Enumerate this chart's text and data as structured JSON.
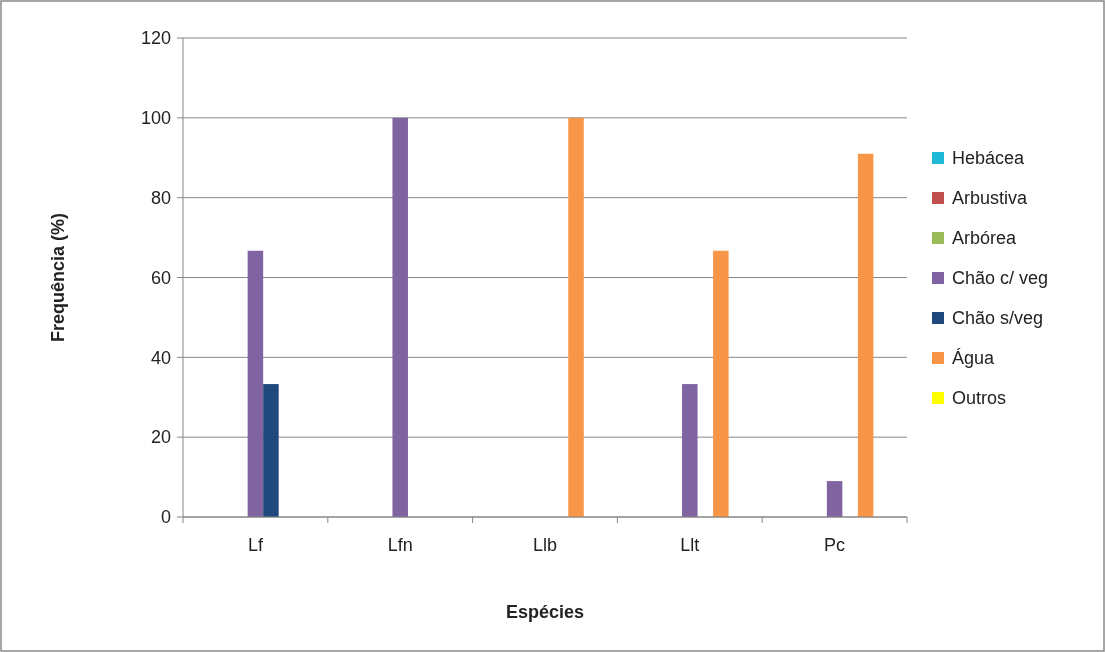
{
  "chart_data": {
    "type": "bar",
    "xlabel": "Espécies",
    "ylabel": "Frequência (%)",
    "categories": [
      "Lf",
      "Lfn",
      "Llb",
      "Llt",
      "Pc"
    ],
    "series": [
      {
        "name": "Hebácea",
        "color": "#1fb8d6",
        "values": [
          0,
          0,
          0,
          0,
          0
        ]
      },
      {
        "name": "Arbustiva",
        "color": "#c0504d",
        "values": [
          0,
          0,
          0,
          0,
          0
        ]
      },
      {
        "name": "Arbórea",
        "color": "#9bbb59",
        "values": [
          0,
          0,
          0,
          0,
          0
        ]
      },
      {
        "name": "Chão c/ veg",
        "color": "#8064a2",
        "values": [
          66.7,
          100,
          0,
          33.3,
          9
        ]
      },
      {
        "name": "Chão s/veg",
        "color": "#1f497d",
        "values": [
          33.3,
          0,
          0,
          0,
          0
        ]
      },
      {
        "name": "Água",
        "color": "#f79646",
        "values": [
          0,
          0,
          100,
          66.7,
          91
        ]
      },
      {
        "name": "Outros",
        "color": "#ffff00",
        "values": [
          0,
          0,
          0,
          0,
          0
        ]
      }
    ],
    "ylim": [
      0,
      120
    ],
    "yticks": [
      0,
      20,
      40,
      60,
      80,
      100,
      120
    ],
    "grid": "y",
    "legend": "right"
  }
}
